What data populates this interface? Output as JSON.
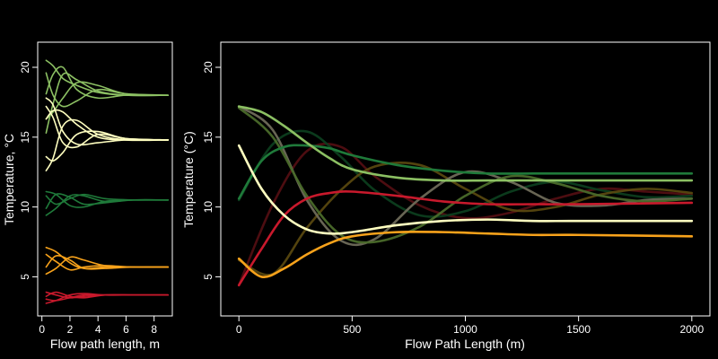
{
  "chart_data": [
    {
      "type": "line",
      "xlabel": "Flow path length, m",
      "ylabel": "Temperature, °C",
      "xlim": [
        -0.3,
        9.3
      ],
      "ylim": [
        2.2,
        21.8
      ],
      "xticks": [
        0,
        2,
        4,
        6,
        8
      ],
      "xtick_labels": [
        "0",
        "2",
        "4",
        "6",
        "8"
      ],
      "yticks": [
        5,
        10,
        15,
        20
      ],
      "ytick_labels": [
        "5",
        "10",
        "15",
        "20"
      ],
      "grid": false,
      "series": [
        {
          "color": "#8cc063",
          "x": [
            0.3,
            0.8,
            1.5,
            2.5,
            4,
            6,
            9
          ],
          "y": [
            20.5,
            20.1,
            19.2,
            18.7,
            18.2,
            18.0,
            18.0
          ]
        },
        {
          "color": "#8cc063",
          "x": [
            0.3,
            0.8,
            1.5,
            2.5,
            4,
            6,
            9
          ],
          "y": [
            18.1,
            19.5,
            20.0,
            18.4,
            17.8,
            18.0,
            18.0
          ]
        },
        {
          "color": "#8cc063",
          "x": [
            0.3,
            0.8,
            1.5,
            2.5,
            4,
            6,
            9
          ],
          "y": [
            16.3,
            16.8,
            17.8,
            18.9,
            18.7,
            18.1,
            18.0
          ]
        },
        {
          "color": "#8cc063",
          "x": [
            0.3,
            0.8,
            1.5,
            2.5,
            4,
            6,
            9
          ],
          "y": [
            15.3,
            17.4,
            19.5,
            19.1,
            18.3,
            18.0,
            18.0
          ]
        },
        {
          "color": "#8cc063",
          "x": [
            0.3,
            0.8,
            1.5,
            2.5,
            4,
            6,
            9
          ],
          "y": [
            19.6,
            18.0,
            17.2,
            17.6,
            18.4,
            18.1,
            18.0
          ]
        },
        {
          "color": "#ffffc0",
          "x": [
            0.3,
            0.8,
            1.5,
            2.5,
            4,
            6,
            9
          ],
          "y": [
            17.8,
            17.3,
            15.4,
            14.5,
            14.6,
            14.8,
            14.8
          ]
        },
        {
          "color": "#ffffc0",
          "x": [
            0.3,
            0.8,
            1.5,
            2.5,
            4,
            6,
            9
          ],
          "y": [
            17.2,
            16.4,
            14.6,
            14.3,
            15.2,
            14.9,
            14.8
          ]
        },
        {
          "color": "#ffffc0",
          "x": [
            0.3,
            0.8,
            1.5,
            2.5,
            4,
            6,
            9
          ],
          "y": [
            12.6,
            13.5,
            15.8,
            16.2,
            15.2,
            14.8,
            14.8
          ]
        },
        {
          "color": "#ffffc0",
          "x": [
            0.3,
            0.8,
            1.5,
            2.5,
            4,
            6,
            9
          ],
          "y": [
            13.6,
            13.3,
            13.9,
            15.2,
            15.4,
            14.9,
            14.8
          ]
        },
        {
          "color": "#ffffc0",
          "x": [
            0.3,
            0.8,
            1.5,
            2.5,
            4,
            6,
            9
          ],
          "y": [
            16.3,
            16.9,
            16.8,
            15.9,
            15.0,
            14.8,
            14.8
          ]
        },
        {
          "color": "#1f7a3a",
          "x": [
            0.3,
            1,
            2,
            3,
            4.5,
            6.5,
            9
          ],
          "y": [
            11.1,
            10.9,
            10.1,
            10.0,
            10.4,
            10.5,
            10.5
          ]
        },
        {
          "color": "#1f7a3a",
          "x": [
            0.3,
            1,
            2,
            3,
            4.5,
            6.5,
            9
          ],
          "y": [
            10.8,
            10.2,
            10.6,
            10.9,
            10.6,
            10.5,
            10.5
          ]
        },
        {
          "color": "#1f7a3a",
          "x": [
            0.3,
            1,
            2,
            3,
            4.5,
            6.5,
            9
          ],
          "y": [
            9.4,
            9.9,
            10.8,
            10.8,
            10.4,
            10.5,
            10.5
          ]
        },
        {
          "color": "#1f7a3a",
          "x": [
            0.3,
            1,
            2,
            3,
            4.5,
            6.5,
            9
          ],
          "y": [
            9.9,
            10.9,
            10.7,
            10.2,
            10.3,
            10.5,
            10.5
          ]
        },
        {
          "color": "#f7a21b",
          "x": [
            0.3,
            1,
            2,
            3,
            4.5,
            6.5,
            9
          ],
          "y": [
            7.1,
            6.8,
            6.0,
            5.6,
            5.7,
            5.7,
            5.7
          ]
        },
        {
          "color": "#f7a21b",
          "x": [
            0.3,
            1,
            2,
            3,
            4.5,
            6.5,
            9
          ],
          "y": [
            6.6,
            6.1,
            5.5,
            5.7,
            5.8,
            5.7,
            5.7
          ]
        },
        {
          "color": "#f7a21b",
          "x": [
            0.3,
            1,
            2,
            3,
            4.5,
            6.5,
            9
          ],
          "y": [
            5.2,
            5.6,
            6.4,
            6.2,
            5.8,
            5.7,
            5.7
          ]
        },
        {
          "color": "#f7a21b",
          "x": [
            0.3,
            1,
            2,
            3,
            4.5,
            6.5,
            9
          ],
          "y": [
            5.7,
            6.5,
            6.2,
            5.6,
            5.6,
            5.7,
            5.7
          ]
        },
        {
          "color": "#c8192c",
          "x": [
            0.3,
            1,
            2,
            3,
            4.5,
            6.5,
            9
          ],
          "y": [
            3.9,
            3.7,
            3.5,
            3.6,
            3.7,
            3.7,
            3.7
          ]
        },
        {
          "color": "#c8192c",
          "x": [
            0.3,
            1,
            2,
            3,
            4.5,
            6.5,
            9
          ],
          "y": [
            3.1,
            3.3,
            3.7,
            3.8,
            3.7,
            3.7,
            3.7
          ]
        },
        {
          "color": "#c8192c",
          "x": [
            0.3,
            1,
            2,
            3,
            4.5,
            6.5,
            9
          ],
          "y": [
            3.6,
            3.9,
            3.6,
            3.5,
            3.7,
            3.7,
            3.7
          ]
        },
        {
          "color": "#c8192c",
          "x": [
            0.3,
            1,
            2,
            3,
            4.5,
            6.5,
            9
          ],
          "y": [
            3.4,
            3.3,
            3.5,
            3.7,
            3.7,
            3.7,
            3.7
          ]
        }
      ]
    },
    {
      "type": "line",
      "xlabel": "Flow Path Length (m)",
      "ylabel": "Temperature (°C)",
      "xlim": [
        -80,
        2080
      ],
      "ylim": [
        2.2,
        21.8
      ],
      "xticks": [
        0,
        500,
        1000,
        1500,
        2000
      ],
      "xtick_labels": [
        "0",
        "500",
        "1000",
        "1500",
        "2000"
      ],
      "yticks": [
        5,
        10,
        15,
        20
      ],
      "ytick_labels": [
        "5",
        "10",
        "15",
        "20"
      ],
      "grid": false,
      "series": [
        {
          "color": "#5a0f14",
          "opacity": 0.85,
          "x": [
            0,
            150,
            300,
            450,
            600,
            800,
            1000,
            1200,
            1400,
            1600,
            1800,
            2000
          ],
          "y": [
            4.4,
            10.2,
            14.0,
            14.3,
            12.2,
            10.1,
            9.2,
            9.6,
            10.6,
            11.3,
            11.1,
            10.9
          ]
        },
        {
          "color": "#0c3d1d",
          "opacity": 0.95,
          "x": [
            0,
            150,
            300,
            450,
            600,
            800,
            1000,
            1200,
            1400,
            1600,
            1800,
            2000
          ],
          "y": [
            10.5,
            14.5,
            15.4,
            13.6,
            11.2,
            9.4,
            9.7,
            11.1,
            11.8,
            11.2,
            10.7,
            10.8
          ]
        },
        {
          "color": "#5c4a10",
          "opacity": 0.9,
          "x": [
            0,
            150,
            300,
            450,
            600,
            800,
            1000,
            1200,
            1400,
            1600,
            1800,
            2000
          ],
          "y": [
            6.2,
            5.2,
            8.5,
            11.2,
            12.9,
            13.0,
            11.3,
            9.8,
            10.0,
            10.9,
            11.3,
            11.0
          ]
        },
        {
          "color": "#6e6a58",
          "opacity": 0.95,
          "x": [
            0,
            150,
            300,
            450,
            600,
            800,
            1000,
            1200,
            1400,
            1600,
            1800,
            2000
          ],
          "y": [
            17.2,
            15.5,
            10.5,
            7.6,
            7.7,
            10.6,
            12.5,
            11.8,
            10.3,
            10.1,
            10.5,
            10.6
          ]
        },
        {
          "color": "#4a6a2a",
          "opacity": 0.95,
          "x": [
            0,
            150,
            300,
            450,
            600,
            800,
            1000,
            1200,
            1400,
            1600,
            1800,
            2000
          ],
          "y": [
            17.1,
            15.0,
            10.8,
            8.0,
            7.5,
            8.6,
            10.8,
            12.2,
            11.7,
            10.8,
            10.4,
            10.6
          ]
        },
        {
          "color": "#c8192c",
          "x": [
            0,
            100,
            200,
            300,
            400,
            500,
            700,
            900,
            1100,
            1300,
            1500,
            2000
          ],
          "y": [
            4.4,
            7.0,
            9.4,
            10.6,
            11.0,
            11.1,
            10.8,
            10.4,
            10.2,
            10.2,
            10.2,
            10.3
          ]
        },
        {
          "color": "#1f7a3a",
          "x": [
            0,
            100,
            200,
            300,
            400,
            500,
            700,
            900,
            1100,
            1300,
            1500,
            2000
          ],
          "y": [
            10.6,
            13.3,
            14.3,
            14.4,
            14.2,
            13.7,
            13.0,
            12.6,
            12.4,
            12.4,
            12.4,
            12.4
          ]
        },
        {
          "color": "#8cc063",
          "x": [
            0,
            100,
            200,
            300,
            400,
            500,
            700,
            900,
            1100,
            1300,
            1500,
            2000
          ],
          "y": [
            17.2,
            16.8,
            15.8,
            14.6,
            13.5,
            12.7,
            12.1,
            11.9,
            11.9,
            11.9,
            11.9,
            11.9
          ]
        },
        {
          "color": "#ffffc0",
          "x": [
            0,
            100,
            200,
            300,
            400,
            500,
            700,
            900,
            1100,
            1300,
            1500,
            2000
          ],
          "y": [
            14.4,
            11.3,
            9.4,
            8.4,
            8.1,
            8.2,
            8.7,
            9.0,
            9.1,
            9.0,
            9.0,
            9.0
          ]
        },
        {
          "color": "#f7a21b",
          "x": [
            0,
            100,
            200,
            300,
            400,
            500,
            700,
            900,
            1100,
            1300,
            1500,
            2000
          ],
          "y": [
            6.3,
            5.0,
            5.6,
            6.6,
            7.4,
            7.9,
            8.2,
            8.2,
            8.1,
            8.0,
            8.0,
            7.9
          ]
        }
      ]
    }
  ]
}
